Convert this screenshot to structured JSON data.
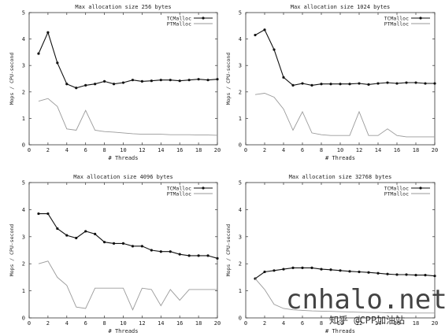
{
  "chart_data": [
    {
      "type": "line",
      "title": "Max allocation size 256 bytes",
      "xlabel": "# Threads",
      "ylabel": "Mops / CPU-second",
      "xlim": [
        0,
        20
      ],
      "ylim": [
        0,
        5
      ],
      "xticks": [
        "0",
        "2",
        "4",
        "6",
        "8",
        "10",
        "12",
        "14",
        "16",
        "18",
        "20"
      ],
      "yticks": [
        "0",
        "1",
        "2",
        "3",
        "4",
        "5"
      ],
      "legend": "top-right",
      "grid": false,
      "x": [
        1,
        2,
        3,
        4,
        5,
        6,
        7,
        8,
        9,
        10,
        11,
        12,
        13,
        14,
        15,
        16,
        17,
        18,
        19,
        20
      ],
      "series": [
        {
          "name": "TCMalloc",
          "marker": true,
          "values": [
            3.45,
            4.25,
            3.1,
            2.3,
            2.15,
            2.25,
            2.3,
            2.4,
            2.3,
            2.35,
            2.45,
            2.4,
            2.42,
            2.45,
            2.45,
            2.42,
            2.45,
            2.48,
            2.45,
            2.48
          ]
        },
        {
          "name": "PTMalloc",
          "marker": false,
          "values": [
            1.65,
            1.75,
            1.45,
            0.6,
            0.55,
            1.3,
            0.55,
            0.5,
            0.48,
            0.45,
            0.42,
            0.4,
            0.4,
            0.4,
            0.38,
            0.38,
            0.38,
            0.37,
            0.37,
            0.36
          ]
        }
      ]
    },
    {
      "type": "line",
      "title": "Max allocation size 1024 bytes",
      "xlabel": "# Threads",
      "ylabel": "Mops / CPU-second",
      "xlim": [
        0,
        20
      ],
      "ylim": [
        0,
        5
      ],
      "xticks": [
        "0",
        "2",
        "4",
        "6",
        "8",
        "10",
        "12",
        "14",
        "16",
        "18",
        "20"
      ],
      "yticks": [
        "0",
        "1",
        "2",
        "3",
        "4",
        "5"
      ],
      "legend": "top-right",
      "grid": false,
      "x": [
        1,
        2,
        3,
        4,
        5,
        6,
        7,
        8,
        9,
        10,
        11,
        12,
        13,
        14,
        15,
        16,
        17,
        18,
        19,
        20
      ],
      "series": [
        {
          "name": "TCMalloc",
          "marker": true,
          "values": [
            4.15,
            4.35,
            3.6,
            2.55,
            2.25,
            2.32,
            2.25,
            2.3,
            2.3,
            2.3,
            2.3,
            2.32,
            2.28,
            2.32,
            2.35,
            2.32,
            2.35,
            2.35,
            2.32,
            2.32
          ]
        },
        {
          "name": "PTMalloc",
          "marker": false,
          "values": [
            1.9,
            1.95,
            1.8,
            1.35,
            0.55,
            1.25,
            0.45,
            0.38,
            0.35,
            0.35,
            0.35,
            1.25,
            0.35,
            0.35,
            0.6,
            0.35,
            0.3,
            0.3,
            0.3,
            0.3
          ]
        }
      ]
    },
    {
      "type": "line",
      "title": "Max allocation size 4096 bytes",
      "xlabel": "# Threads",
      "ylabel": "Mops / CPU-second",
      "xlim": [
        0,
        20
      ],
      "ylim": [
        0,
        5
      ],
      "xticks": [
        "0",
        "2",
        "4",
        "6",
        "8",
        "10",
        "12",
        "14",
        "16",
        "18",
        "20"
      ],
      "yticks": [
        "0",
        "1",
        "2",
        "3",
        "4",
        "5"
      ],
      "legend": "top-right",
      "grid": false,
      "x": [
        1,
        2,
        3,
        4,
        5,
        6,
        7,
        8,
        9,
        10,
        11,
        12,
        13,
        14,
        15,
        16,
        17,
        18,
        19,
        20
      ],
      "series": [
        {
          "name": "TCMalloc",
          "marker": true,
          "values": [
            3.85,
            3.85,
            3.3,
            3.05,
            2.95,
            3.2,
            3.1,
            2.8,
            2.75,
            2.75,
            2.65,
            2.65,
            2.5,
            2.45,
            2.45,
            2.35,
            2.3,
            2.3,
            2.3,
            2.2
          ]
        },
        {
          "name": "PTMalloc",
          "marker": false,
          "values": [
            2.0,
            2.1,
            1.5,
            1.2,
            0.4,
            0.35,
            1.1,
            1.1,
            1.1,
            1.1,
            0.3,
            1.1,
            1.05,
            0.45,
            1.05,
            0.65,
            1.05,
            1.05,
            1.05,
            1.05
          ]
        }
      ]
    },
    {
      "type": "line",
      "title": "Max allocation size 32768 bytes",
      "xlabel": "# Threads",
      "ylabel": "Mops / CPU-second",
      "xlim": [
        0,
        20
      ],
      "ylim": [
        0,
        5
      ],
      "xticks": [
        "0",
        "2",
        "4",
        "6",
        "8",
        "10",
        "12",
        "14",
        "16",
        "18",
        "20"
      ],
      "yticks": [
        "0",
        "1",
        "2",
        "3",
        "4",
        "5"
      ],
      "legend": "top-right",
      "grid": false,
      "x": [
        1,
        2,
        3,
        4,
        5,
        6,
        7,
        8,
        9,
        10,
        11,
        12,
        13,
        14,
        15,
        16,
        17,
        18,
        19,
        20
      ],
      "series": [
        {
          "name": "TCMalloc",
          "marker": true,
          "values": [
            1.45,
            1.7,
            1.75,
            1.8,
            1.85,
            1.85,
            1.85,
            1.8,
            1.78,
            1.75,
            1.72,
            1.7,
            1.68,
            1.65,
            1.62,
            1.6,
            1.6,
            1.58,
            1.58,
            1.55
          ]
        },
        {
          "name": "PTMalloc",
          "marker": false,
          "values": [
            1.45,
            1.05,
            0.5,
            0.35,
            0.3,
            0.28,
            0.26,
            0.25,
            0.24,
            0.23,
            0.22,
            0.21,
            0.2,
            0.2,
            0.19,
            0.19,
            0.18,
            0.18,
            0.18,
            0.18
          ]
        }
      ]
    }
  ],
  "watermark": {
    "site": "cnhalo.net",
    "credit": "知乎 @CPP加油站"
  }
}
